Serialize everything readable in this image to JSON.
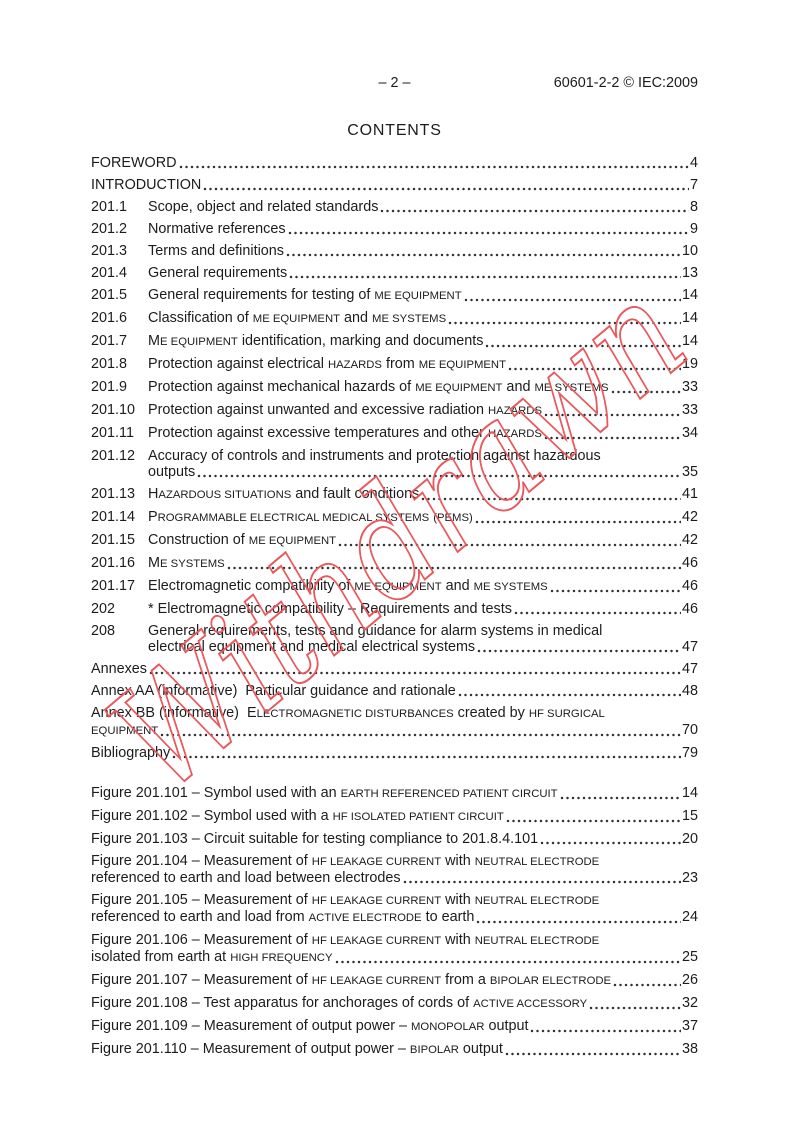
{
  "header": {
    "page_marker": "– 2 –",
    "doc_ref": "60601-2-2 © IEC:2009"
  },
  "title": "CONTENTS",
  "watermark": {
    "text": "Withdrawn",
    "color": "#e8585c"
  },
  "colors": {
    "body_text": "#1c1c1c",
    "dot_leader": "#333333",
    "background": "#ffffff",
    "watermark_red": "#e8585c"
  },
  "toc": {
    "sections": [
      {
        "label": "FOREWORD",
        "page": "4"
      },
      {
        "label": "INTRODUCTION",
        "page": "7"
      },
      {
        "num": "201.1",
        "label": "Scope, object and related standards",
        "page": "8"
      },
      {
        "num": "201.2",
        "label": "Normative references",
        "page": "9"
      },
      {
        "num": "201.3",
        "label": "Terms and definitions",
        "page": "10"
      },
      {
        "num": "201.4",
        "label": "General requirements",
        "page": "13"
      },
      {
        "num": "201.5",
        "label": "General requirements for testing of {ME EQUIPMENT}",
        "page": "14"
      },
      {
        "num": "201.6",
        "label": "Classification of {ME EQUIPMENT} and {ME SYSTEMS}",
        "page": "14"
      },
      {
        "num": "201.7",
        "label": "M{E EQUIPMENT} identification, marking and documents",
        "page": "14"
      },
      {
        "num": "201.8",
        "label": "Protection against electrical {HAZARDS} from {ME EQUIPMENT}",
        "page": "19"
      },
      {
        "num": "201.9",
        "label": "Protection against mechanical hazards of {ME EQUIPMENT} and {ME SYSTEMS}",
        "page": "33"
      },
      {
        "num": "201.10",
        "label": "Protection against unwanted and excessive radiation {HAZARDS}",
        "page": "33"
      },
      {
        "num": "201.11",
        "label": "Protection against excessive temperatures and other {HAZARDS}",
        "page": "34"
      },
      {
        "num": "201.12",
        "label": "Accuracy of controls and instruments and protection against hazardous",
        "label2": "outputs",
        "page": "35"
      },
      {
        "num": "201.13",
        "label": "H{AZARDOUS SITUATIONS} and fault conditions",
        "page": "41"
      },
      {
        "num": "201.14",
        "label": "P{ROGRAMMABLE ELECTRICAL MEDICAL SYSTEMS} {(PEMS)}",
        "page": "42"
      },
      {
        "num": "201.15",
        "label": "Construction of {ME EQUIPMENT}",
        "page": "42"
      },
      {
        "num": "201.16",
        "label": "M{E SYSTEMS}",
        "page": "46"
      },
      {
        "num": "201.17",
        "label": "Electromagnetic compatibility of {ME EQUIPMENT} and {ME SYSTEMS}",
        "page": "46"
      },
      {
        "num": "202",
        "label": "* Electromagnetic compatibility – Requirements and tests",
        "page": "46"
      },
      {
        "num": "208",
        "label": "General requirements, tests and guidance for alarm systems in medical",
        "label2": "electrical equipment and medical electrical systems",
        "page": "47"
      },
      {
        "label": "Annexes",
        "page": "47"
      },
      {
        "label": "Annex AA (informative)  Particular guidance and rationale",
        "page": "48"
      },
      {
        "label": "Annex BB (informative)  E{LECTROMAGNETIC DISTURBANCES} created by {HF SURGICAL}",
        "label2": "{EQUIPMENT}",
        "page": "70"
      },
      {
        "label": "Bibliography",
        "page": "79"
      }
    ],
    "figures": [
      {
        "label": "Figure 201.101 – Symbol used with an {EARTH REFERENCED PATIENT CIRCUIT}",
        "page": "14"
      },
      {
        "label": "Figure 201.102 – Symbol used with a {HF ISOLATED PATIENT CIRCUIT}",
        "page": "15"
      },
      {
        "label": "Figure 201.103 – Circuit suitable for testing compliance to 201.8.4.101",
        "page": "20"
      },
      {
        "label": "Figure 201.104 – Measurement of {HF LEAKAGE CURRENT} with {NEUTRAL ELECTRODE}",
        "label2": "referenced to earth and load between electrodes",
        "page": "23"
      },
      {
        "label": "Figure 201.105 – Measurement of {HF LEAKAGE CURRENT} with {NEUTRAL ELECTRODE}",
        "label2": "referenced to earth and load from {ACTIVE ELECTRODE} to earth",
        "page": "24"
      },
      {
        "label": "Figure 201.106 – Measurement of {HF LEAKAGE CURRENT} with {NEUTRAL ELECTRODE}",
        "label2": "isolated from earth at {HIGH FREQUENCY}",
        "page": "25"
      },
      {
        "label": "Figure 201.107 – Measurement of {HF LEAKAGE CURRENT} from a {BIPOLAR ELECTRODE}",
        "page": "26"
      },
      {
        "label": "Figure 201.108 – Test apparatus for anchorages of cords of {ACTIVE ACCESSORY}",
        "page": "32"
      },
      {
        "label": "Figure 201.109 – Measurement of output power – {MONOPOLAR} output",
        "page": "37"
      },
      {
        "label": "Figure 201.110 – Measurement of output power – {BIPOLAR} output",
        "page": "38"
      }
    ]
  }
}
